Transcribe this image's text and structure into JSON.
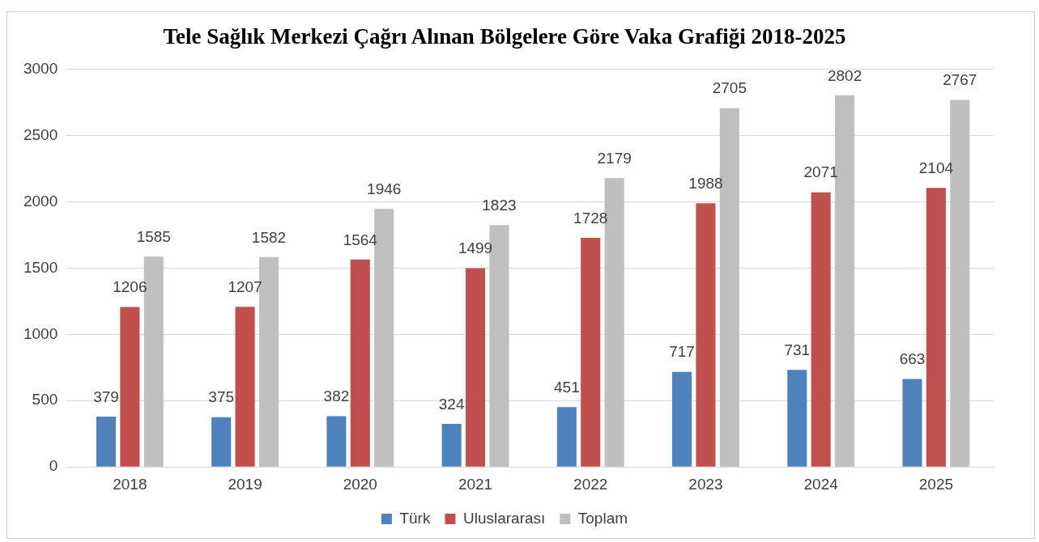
{
  "chart_data": {
    "type": "bar",
    "title": "Tele Sağlık Merkezi Çağrı Alınan Bölgelere Göre Vaka Grafiği 2018-2025",
    "categories": [
      "2018",
      "2019",
      "2020",
      "2021",
      "2022",
      "2023",
      "2024",
      "2025"
    ],
    "series": [
      {
        "name": "Türk",
        "color": "#4f81bd",
        "values": [
          379,
          375,
          382,
          324,
          451,
          717,
          731,
          663
        ]
      },
      {
        "name": "Uluslararası",
        "color": "#c0504d",
        "values": [
          1206,
          1207,
          1564,
          1499,
          1728,
          1988,
          2071,
          2104
        ]
      },
      {
        "name": "Toplam",
        "color": "#bfbfbf",
        "values": [
          1585,
          1582,
          1946,
          1823,
          2179,
          2705,
          2802,
          2767
        ]
      }
    ],
    "ylim": [
      0,
      3000
    ],
    "yticks": [
      0,
      500,
      1000,
      1500,
      2000,
      2500,
      3000
    ],
    "grid": "y",
    "legend": "bottom",
    "data_labels": true
  }
}
